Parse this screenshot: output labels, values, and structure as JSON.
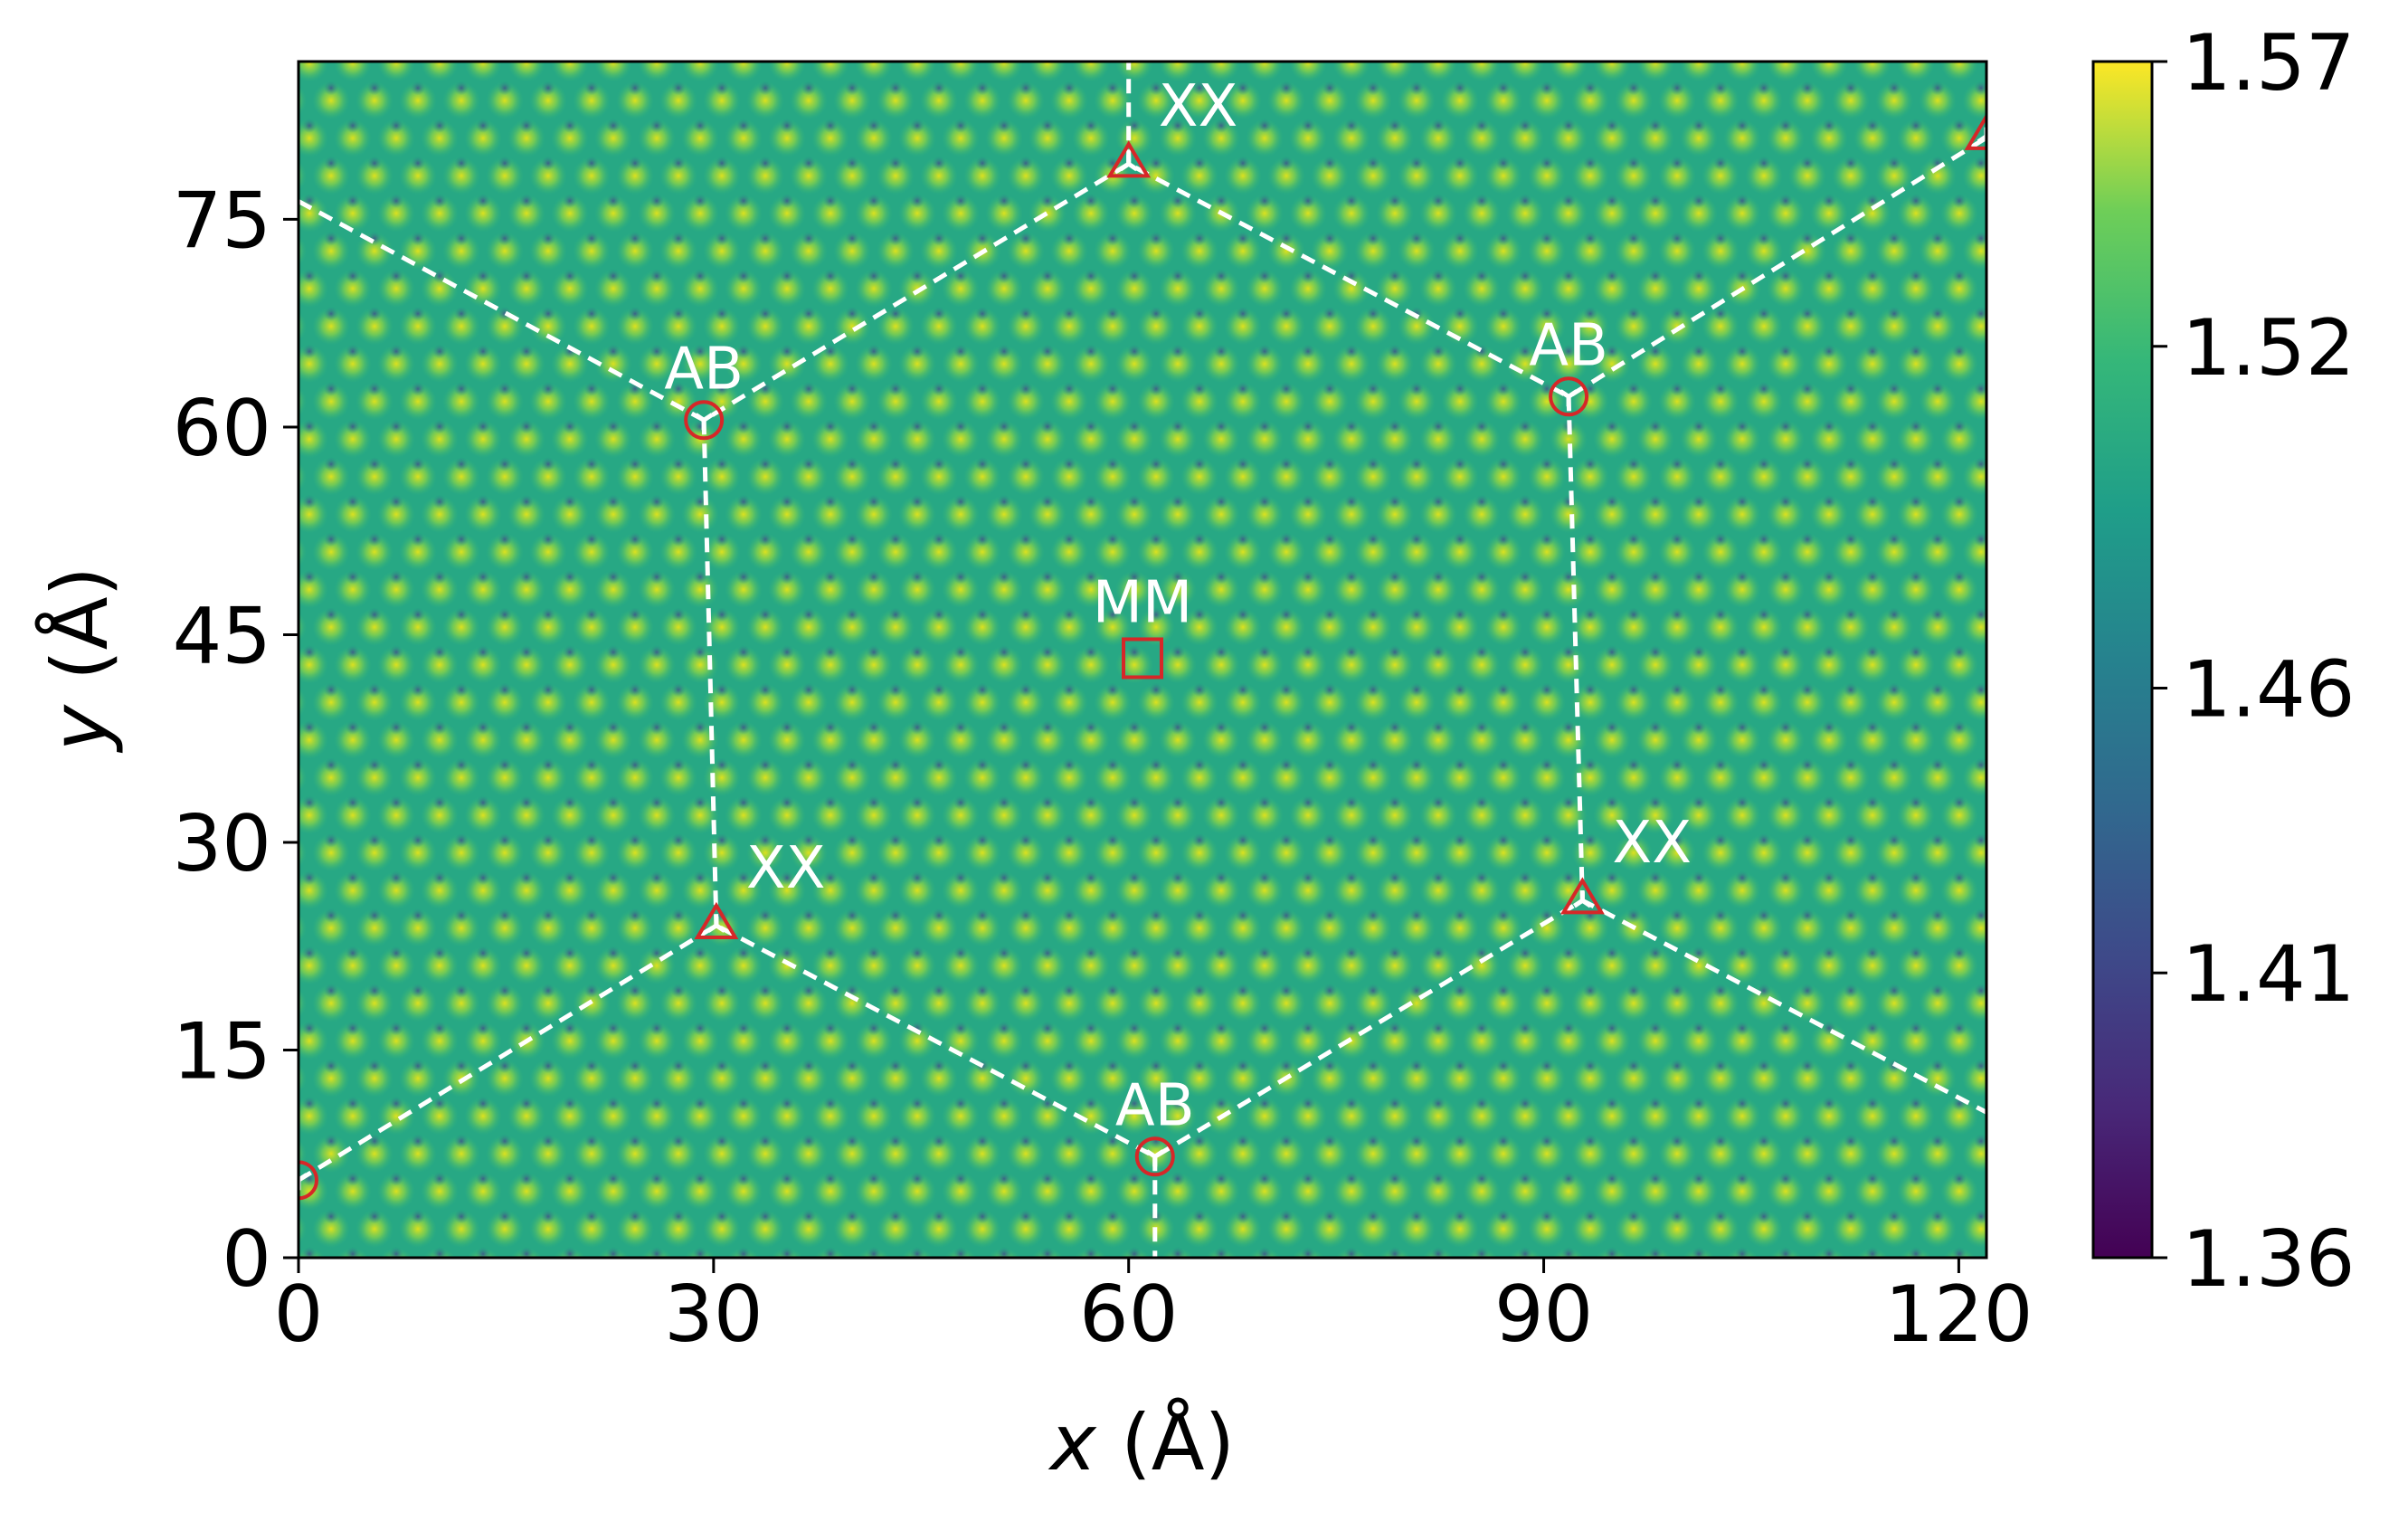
{
  "chart_data": {
    "type": "heatmap",
    "title": "",
    "xlabel": "x (Å)",
    "ylabel": "y (Å)",
    "xlabel_parts": {
      "var": "x",
      "unit": " (Å)"
    },
    "ylabel_parts": {
      "var": "y",
      "unit": " (Å)"
    },
    "xlim": [
      0,
      122
    ],
    "ylim": [
      0,
      86.4
    ],
    "x_ticks": [
      0,
      30,
      60,
      90,
      120
    ],
    "x_tick_labels": [
      "0",
      "30",
      "60",
      "90",
      "120"
    ],
    "y_ticks": [
      0,
      15,
      30,
      45,
      60,
      75
    ],
    "y_tick_labels": [
      "0",
      "15",
      "30",
      "45",
      "60",
      "75"
    ],
    "colormap": "viridis",
    "colorbar": {
      "range": [
        1.36,
        1.57
      ],
      "ticks": [
        1.36,
        1.41,
        1.46,
        1.52,
        1.57
      ],
      "tick_labels": [
        "1.36",
        "1.41",
        "1.46",
        "1.52",
        "1.57"
      ]
    },
    "grid": false,
    "markers": [
      {
        "label": "AB",
        "shape": "circle",
        "x": 29.3,
        "y": 60.5
      },
      {
        "label": "AB",
        "shape": "circle",
        "x": 91.8,
        "y": 62.2
      },
      {
        "label": "AB",
        "shape": "circle",
        "x": 61.9,
        "y": 7.3
      },
      {
        "label": "",
        "shape": "circle",
        "x": 0,
        "y": 5.6
      },
      {
        "label": "XX",
        "shape": "triangle",
        "x": 60.0,
        "y": 79.0
      },
      {
        "label": "XX",
        "shape": "triangle",
        "x": 30.2,
        "y": 24.0
      },
      {
        "label": "XX",
        "shape": "triangle",
        "x": 92.8,
        "y": 25.8
      },
      {
        "label": "",
        "shape": "triangle",
        "x": 122,
        "y": 81.0
      },
      {
        "label": "MM",
        "shape": "square",
        "x": 61.0,
        "y": 43.3
      }
    ],
    "dashed_lines": [
      [
        [
          0,
          76.3
        ],
        [
          29.3,
          60.5
        ],
        [
          60.0,
          79.0
        ],
        [
          91.8,
          62.2
        ],
        [
          122,
          80.9
        ]
      ],
      [
        [
          60.0,
          79.0
        ],
        [
          60.0,
          86.4
        ]
      ],
      [
        [
          29.3,
          60.5
        ],
        [
          30.2,
          24.0
        ]
      ],
      [
        [
          91.8,
          62.2
        ],
        [
          92.8,
          25.8
        ]
      ],
      [
        [
          0,
          5.6
        ],
        [
          30.2,
          24.0
        ],
        [
          61.9,
          7.3
        ],
        [
          92.8,
          25.8
        ],
        [
          122,
          10.5
        ]
      ],
      [
        [
          61.9,
          7.3
        ],
        [
          61.9,
          0
        ]
      ]
    ]
  }
}
